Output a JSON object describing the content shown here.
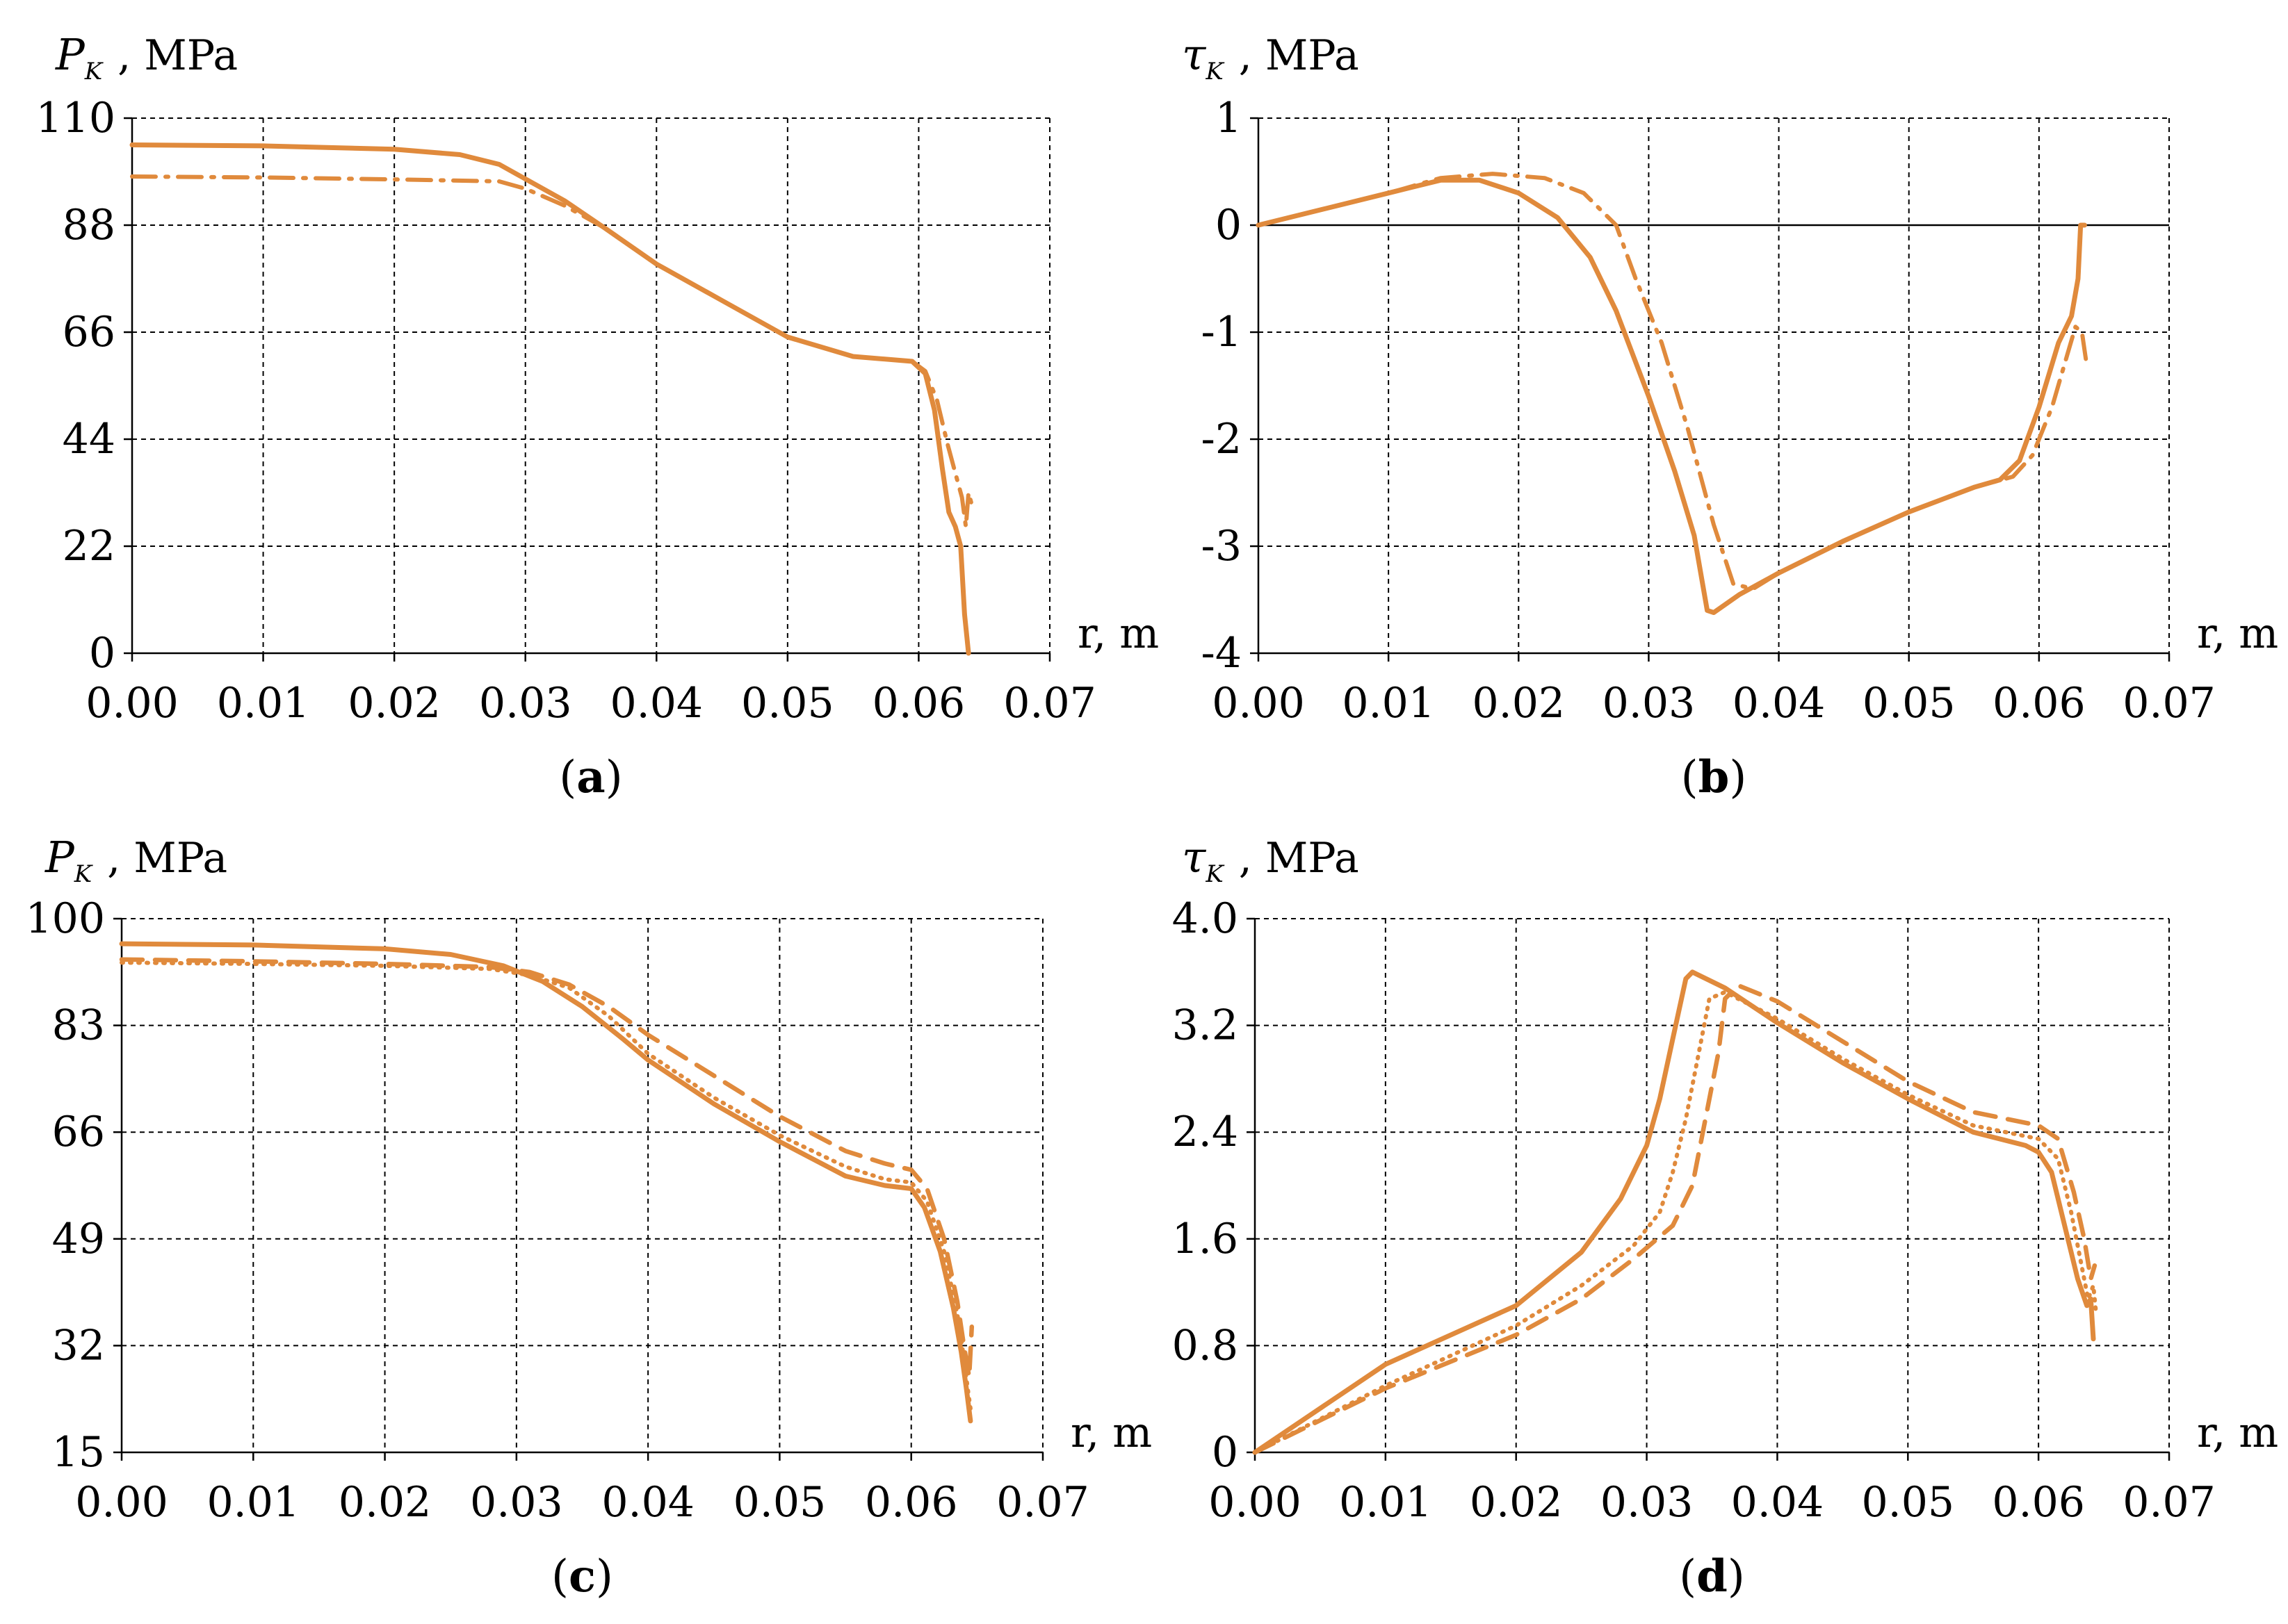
{
  "colors": {
    "series": "#E08A3C",
    "grid": "#000000",
    "text": "#000000"
  },
  "chart_data": [
    {
      "id": "a",
      "type": "line",
      "panel_label": "a",
      "ylabel_symbol": "P",
      "ylabel_subscript": "K",
      "ylabel_unit": ", MPa",
      "xlabel": "r, m",
      "xlim": [
        0,
        0.07
      ],
      "ylim": [
        0,
        110
      ],
      "xticks": [
        0,
        0.01,
        0.02,
        0.03,
        0.04,
        0.05,
        0.06,
        0.07
      ],
      "xtick_labels": [
        "0.00",
        "0.01",
        "0.02",
        "0.03",
        "0.04",
        "0.05",
        "0.06",
        "0.07"
      ],
      "yticks": [
        0,
        22,
        44,
        66,
        88,
        110
      ],
      "ytick_labels": [
        "0",
        "22",
        "44",
        "66",
        "88",
        "110"
      ],
      "grid": true,
      "zero_line": false,
      "series": [
        {
          "style": "solid",
          "points": [
            [
              0,
              104.5
            ],
            [
              0.01,
              104.3
            ],
            [
              0.02,
              103.6
            ],
            [
              0.025,
              102.5
            ],
            [
              0.028,
              100.5
            ],
            [
              0.03,
              97.5
            ],
            [
              0.033,
              93
            ],
            [
              0.036,
              87.5
            ],
            [
              0.04,
              80
            ],
            [
              0.045,
              72.5
            ],
            [
              0.05,
              65
            ],
            [
              0.055,
              61
            ],
            [
              0.0595,
              60
            ],
            [
              0.0605,
              57.5
            ],
            [
              0.0612,
              50
            ],
            [
              0.0618,
              38
            ],
            [
              0.0623,
              29
            ],
            [
              0.0628,
              26
            ],
            [
              0.0632,
              22
            ],
            [
              0.0635,
              8
            ],
            [
              0.0638,
              0
            ]
          ]
        },
        {
          "style": "dashdot",
          "points": [
            [
              0,
              98
            ],
            [
              0.01,
              97.8
            ],
            [
              0.02,
              97.4
            ],
            [
              0.028,
              97
            ],
            [
              0.03,
              95.5
            ],
            [
              0.033,
              92
            ],
            [
              0.036,
              87.5
            ],
            [
              0.04,
              80
            ],
            [
              0.045,
              72.5
            ],
            [
              0.05,
              65
            ],
            [
              0.055,
              61
            ],
            [
              0.0595,
              60
            ],
            [
              0.0605,
              58
            ],
            [
              0.0614,
              52
            ],
            [
              0.0622,
              43
            ],
            [
              0.0628,
              37
            ],
            [
              0.0633,
              32
            ],
            [
              0.0636,
              26
            ],
            [
              0.0638,
              33
            ],
            [
              0.064,
              31
            ]
          ]
        }
      ]
    },
    {
      "id": "b",
      "type": "line",
      "panel_label": "b",
      "ylabel_symbol": "τ",
      "ylabel_subscript": "K",
      "ylabel_unit": ", MPa",
      "xlabel": "r, m",
      "xlim": [
        0,
        0.07
      ],
      "ylim": [
        -4,
        1
      ],
      "xticks": [
        0,
        0.01,
        0.02,
        0.03,
        0.04,
        0.05,
        0.06,
        0.07
      ],
      "xtick_labels": [
        "0.00",
        "0.01",
        "0.02",
        "0.03",
        "0.04",
        "0.05",
        "0.06",
        "0.07"
      ],
      "yticks": [
        -4,
        -3,
        -2,
        -1,
        0,
        1
      ],
      "ytick_labels": [
        "-4",
        "-3",
        "-2",
        "-1",
        "0",
        "1"
      ],
      "grid": true,
      "zero_line": true,
      "series": [
        {
          "style": "solid",
          "points": [
            [
              0,
              0
            ],
            [
              0.005,
              0.15
            ],
            [
              0.01,
              0.3
            ],
            [
              0.014,
              0.42
            ],
            [
              0.017,
              0.42
            ],
            [
              0.02,
              0.3
            ],
            [
              0.023,
              0.07
            ],
            [
              0.0255,
              -0.3
            ],
            [
              0.0275,
              -0.8
            ],
            [
              0.03,
              -1.6
            ],
            [
              0.032,
              -2.3
            ],
            [
              0.0335,
              -2.9
            ],
            [
              0.0345,
              -3.6
            ],
            [
              0.035,
              -3.62
            ],
            [
              0.037,
              -3.45
            ],
            [
              0.04,
              -3.25
            ],
            [
              0.045,
              -2.95
            ],
            [
              0.05,
              -2.68
            ],
            [
              0.055,
              -2.45
            ],
            [
              0.057,
              -2.38
            ],
            [
              0.0585,
              -2.2
            ],
            [
              0.06,
              -1.7
            ],
            [
              0.0615,
              -1.1
            ],
            [
              0.0625,
              -0.85
            ],
            [
              0.063,
              -0.5
            ],
            [
              0.0632,
              0
            ],
            [
              0.0635,
              0
            ]
          ]
        },
        {
          "style": "dashdot",
          "points": [
            [
              0,
              0
            ],
            [
              0.005,
              0.15
            ],
            [
              0.01,
              0.3
            ],
            [
              0.014,
              0.44
            ],
            [
              0.018,
              0.48
            ],
            [
              0.022,
              0.44
            ],
            [
              0.025,
              0.3
            ],
            [
              0.0275,
              0
            ],
            [
              0.029,
              -0.5
            ],
            [
              0.031,
              -1.1
            ],
            [
              0.033,
              -1.9
            ],
            [
              0.035,
              -2.8
            ],
            [
              0.0365,
              -3.35
            ],
            [
              0.038,
              -3.4
            ],
            [
              0.04,
              -3.25
            ],
            [
              0.045,
              -2.95
            ],
            [
              0.05,
              -2.68
            ],
            [
              0.055,
              -2.45
            ],
            [
              0.058,
              -2.35
            ],
            [
              0.0595,
              -2.15
            ],
            [
              0.061,
              -1.7
            ],
            [
              0.0622,
              -1.2
            ],
            [
              0.0628,
              -0.95
            ],
            [
              0.0633,
              -1
            ],
            [
              0.0636,
              -1.25
            ]
          ]
        }
      ]
    },
    {
      "id": "c",
      "type": "line",
      "panel_label": "c",
      "ylabel_symbol": "P",
      "ylabel_subscript": "K",
      "ylabel_unit": ", MPa",
      "xlabel": "r, m",
      "xlim": [
        0,
        0.07
      ],
      "ylim": [
        15,
        100
      ],
      "xticks": [
        0,
        0.01,
        0.02,
        0.03,
        0.04,
        0.05,
        0.06,
        0.07
      ],
      "xtick_labels": [
        "0.00",
        "0.01",
        "0.02",
        "0.03",
        "0.04",
        "0.05",
        "0.06",
        "0.07"
      ],
      "yticks": [
        15,
        32,
        49,
        66,
        83,
        100
      ],
      "ytick_labels": [
        "15",
        "32",
        "49",
        "66",
        "83",
        "100"
      ],
      "grid": true,
      "zero_line": false,
      "series": [
        {
          "style": "solid",
          "points": [
            [
              0,
              96
            ],
            [
              0.01,
              95.8
            ],
            [
              0.02,
              95.2
            ],
            [
              0.025,
              94.3
            ],
            [
              0.029,
              92.5
            ],
            [
              0.032,
              90
            ],
            [
              0.035,
              86
            ],
            [
              0.038,
              81
            ],
            [
              0.04,
              77.5
            ],
            [
              0.045,
              70.5
            ],
            [
              0.05,
              64.5
            ],
            [
              0.055,
              59
            ],
            [
              0.058,
              57.5
            ],
            [
              0.06,
              57
            ],
            [
              0.061,
              54
            ],
            [
              0.0622,
              47
            ],
            [
              0.0632,
              38
            ],
            [
              0.0638,
              31
            ],
            [
              0.0642,
              25
            ],
            [
              0.0645,
              20
            ]
          ]
        },
        {
          "style": "dotted",
          "points": [
            [
              0,
              93
            ],
            [
              0.01,
              92.8
            ],
            [
              0.02,
              92.5
            ],
            [
              0.028,
              92
            ],
            [
              0.031,
              91
            ],
            [
              0.034,
              89
            ],
            [
              0.037,
              84.5
            ],
            [
              0.04,
              78.5
            ],
            [
              0.045,
              71.5
            ],
            [
              0.05,
              65.5
            ],
            [
              0.055,
              60.5
            ],
            [
              0.058,
              58.5
            ],
            [
              0.06,
              58
            ],
            [
              0.0612,
              55
            ],
            [
              0.0625,
              47
            ],
            [
              0.0635,
              37
            ],
            [
              0.064,
              30
            ],
            [
              0.0643,
              25
            ],
            [
              0.0645,
              22
            ]
          ]
        },
        {
          "style": "dashed",
          "points": [
            [
              0,
              93.5
            ],
            [
              0.01,
              93.2
            ],
            [
              0.02,
              92.8
            ],
            [
              0.028,
              92.3
            ],
            [
              0.031,
              91.5
            ],
            [
              0.034,
              89.5
            ],
            [
              0.037,
              86
            ],
            [
              0.04,
              81.5
            ],
            [
              0.045,
              75
            ],
            [
              0.05,
              68.5
            ],
            [
              0.055,
              63
            ],
            [
              0.058,
              61
            ],
            [
              0.06,
              60
            ],
            [
              0.0612,
              57
            ],
            [
              0.0625,
              49
            ],
            [
              0.0635,
              39
            ],
            [
              0.064,
              32
            ],
            [
              0.0644,
              27
            ],
            [
              0.0646,
              35
            ]
          ]
        }
      ]
    },
    {
      "id": "d",
      "type": "line",
      "panel_label": "d",
      "ylabel_symbol": "τ",
      "ylabel_subscript": "K",
      "ylabel_unit": ", MPa",
      "xlabel": "r, m",
      "xlim": [
        0,
        0.07
      ],
      "ylim": [
        0,
        4
      ],
      "xticks": [
        0,
        0.01,
        0.02,
        0.03,
        0.04,
        0.05,
        0.06,
        0.07
      ],
      "xtick_labels": [
        "0.00",
        "0.01",
        "0.02",
        "0.03",
        "0.04",
        "0.05",
        "0.06",
        "0.07"
      ],
      "yticks": [
        0,
        0.8,
        1.6,
        2.4,
        3.2,
        4.0
      ],
      "ytick_labels": [
        "0",
        "0.8",
        "1.6",
        "2.4",
        "3.2",
        "4.0"
      ],
      "grid": true,
      "zero_line": false,
      "series": [
        {
          "style": "solid",
          "points": [
            [
              0,
              0
            ],
            [
              0.01,
              0.66
            ],
            [
              0.02,
              1.1
            ],
            [
              0.025,
              1.5
            ],
            [
              0.028,
              1.9
            ],
            [
              0.03,
              2.3
            ],
            [
              0.031,
              2.65
            ],
            [
              0.032,
              3.1
            ],
            [
              0.033,
              3.55
            ],
            [
              0.0335,
              3.6
            ],
            [
              0.036,
              3.48
            ],
            [
              0.04,
              3.22
            ],
            [
              0.045,
              2.92
            ],
            [
              0.05,
              2.65
            ],
            [
              0.055,
              2.4
            ],
            [
              0.059,
              2.3
            ],
            [
              0.06,
              2.25
            ],
            [
              0.061,
              2.1
            ],
            [
              0.062,
              1.7
            ],
            [
              0.063,
              1.3
            ],
            [
              0.0637,
              1.1
            ],
            [
              0.064,
              1.15
            ],
            [
              0.0642,
              0.85
            ]
          ]
        },
        {
          "style": "dotted",
          "points": [
            [
              0,
              0
            ],
            [
              0.01,
              0.5
            ],
            [
              0.02,
              0.95
            ],
            [
              0.025,
              1.25
            ],
            [
              0.029,
              1.55
            ],
            [
              0.031,
              1.8
            ],
            [
              0.032,
              2.1
            ],
            [
              0.033,
              2.5
            ],
            [
              0.034,
              3.0
            ],
            [
              0.0348,
              3.4
            ],
            [
              0.036,
              3.45
            ],
            [
              0.04,
              3.25
            ],
            [
              0.045,
              2.95
            ],
            [
              0.05,
              2.68
            ],
            [
              0.055,
              2.45
            ],
            [
              0.06,
              2.35
            ],
            [
              0.0615,
              2.2
            ],
            [
              0.0625,
              1.8
            ],
            [
              0.0633,
              1.4
            ],
            [
              0.0638,
              1.15
            ],
            [
              0.0642,
              1.25
            ],
            [
              0.0644,
              1.05
            ]
          ]
        },
        {
          "style": "dashed",
          "points": [
            [
              0,
              0
            ],
            [
              0.01,
              0.48
            ],
            [
              0.02,
              0.88
            ],
            [
              0.025,
              1.15
            ],
            [
              0.029,
              1.45
            ],
            [
              0.032,
              1.7
            ],
            [
              0.0335,
              2.0
            ],
            [
              0.0345,
              2.5
            ],
            [
              0.0355,
              3.0
            ],
            [
              0.036,
              3.4
            ],
            [
              0.037,
              3.5
            ],
            [
              0.04,
              3.38
            ],
            [
              0.045,
              3.08
            ],
            [
              0.05,
              2.78
            ],
            [
              0.055,
              2.55
            ],
            [
              0.06,
              2.45
            ],
            [
              0.0615,
              2.35
            ],
            [
              0.0627,
              1.95
            ],
            [
              0.0635,
              1.6
            ],
            [
              0.064,
              1.3
            ],
            [
              0.0643,
              1.4
            ]
          ]
        }
      ]
    }
  ]
}
